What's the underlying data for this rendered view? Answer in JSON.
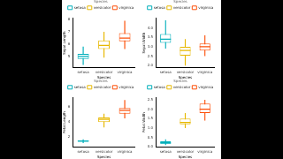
{
  "chart_data": [
    {
      "type": "boxplot",
      "x_label": "Species",
      "y_label": "Sepal.Length",
      "legend": "top",
      "legend_title": "Species",
      "categories": [
        "setosa",
        "versicolor",
        "virginica"
      ],
      "colors": [
        "#00AFBB",
        "#E7B800",
        "#FC4E07"
      ],
      "boxes": [
        {
          "low": 4.3,
          "q1": 4.8,
          "median": 5.0,
          "q3": 5.2,
          "high": 5.8
        },
        {
          "low": 4.9,
          "q1": 5.6,
          "median": 5.9,
          "q3": 6.3,
          "high": 7.0
        },
        {
          "low": 5.6,
          "q1": 6.225,
          "median": 6.5,
          "q3": 6.9,
          "high": 7.9
        }
      ],
      "ylim": [
        4.1,
        8.1
      ],
      "yticks": [
        5,
        6,
        7,
        8
      ],
      "grid": false
    },
    {
      "type": "boxplot",
      "x_label": "Species",
      "y_label": "Sepal.Width",
      "legend": "top",
      "legend_title": "Species",
      "categories": [
        "setosa",
        "versicolor",
        "virginica"
      ],
      "colors": [
        "#00AFBB",
        "#E7B800",
        "#FC4E07"
      ],
      "boxes": [
        {
          "low": 2.9,
          "q1": 3.2,
          "median": 3.4,
          "q3": 3.675,
          "high": 4.4
        },
        {
          "low": 2.0,
          "q1": 2.525,
          "median": 2.8,
          "q3": 3.0,
          "high": 3.4
        },
        {
          "low": 2.5,
          "q1": 2.8,
          "median": 3.0,
          "q3": 3.175,
          "high": 3.6
        }
      ],
      "ylim": [
        1.9,
        4.5
      ],
      "yticks": [
        {
          "value": 2,
          "label": "2.0"
        },
        2.5,
        {
          "value": 3,
          "label": "3.0"
        },
        3.5,
        {
          "value": 4,
          "label": "4.0"
        }
      ],
      "grid": false
    },
    {
      "type": "boxplot",
      "x_label": "Species",
      "y_label": "Petal.Length",
      "legend": "top",
      "legend_title": "Species",
      "categories": [
        "setosa",
        "versicolor",
        "virginica"
      ],
      "colors": [
        "#00AFBB",
        "#E7B800",
        "#FC4E07"
      ],
      "boxes": [
        {
          "low": 1.2,
          "q1": 1.4,
          "median": 1.5,
          "q3": 1.575,
          "high": 1.7
        },
        {
          "low": 3.3,
          "q1": 4.0,
          "median": 4.35,
          "q3": 4.6,
          "high": 5.1
        },
        {
          "low": 4.5,
          "q1": 5.1,
          "median": 5.55,
          "q3": 5.875,
          "high": 6.9
        }
      ],
      "ylim": [
        0.7,
        7.2
      ],
      "yticks": [
        2,
        4,
        6
      ],
      "grid": false
    },
    {
      "type": "boxplot",
      "x_label": "Species",
      "y_label": "Petal.Width",
      "legend": "top",
      "legend_title": "Species",
      "categories": [
        "setosa",
        "versicolor",
        "virginica"
      ],
      "colors": [
        "#00AFBB",
        "#E7B800",
        "#FC4E07"
      ],
      "boxes": [
        {
          "low": 0.1,
          "q1": 0.2,
          "median": 0.2,
          "q3": 0.3,
          "high": 0.4
        },
        {
          "low": 1.0,
          "q1": 1.2,
          "median": 1.3,
          "q3": 1.5,
          "high": 1.8
        },
        {
          "low": 1.4,
          "q1": 1.8,
          "median": 2.0,
          "q3": 2.3,
          "high": 2.5
        }
      ],
      "ylim": [
        0,
        2.6
      ],
      "yticks": [
        {
          "value": 0,
          "label": "0.0"
        },
        0.5,
        {
          "value": 1,
          "label": "1.0"
        },
        1.5,
        {
          "value": 2,
          "label": "2.0"
        },
        2.5
      ],
      "grid": false
    }
  ]
}
